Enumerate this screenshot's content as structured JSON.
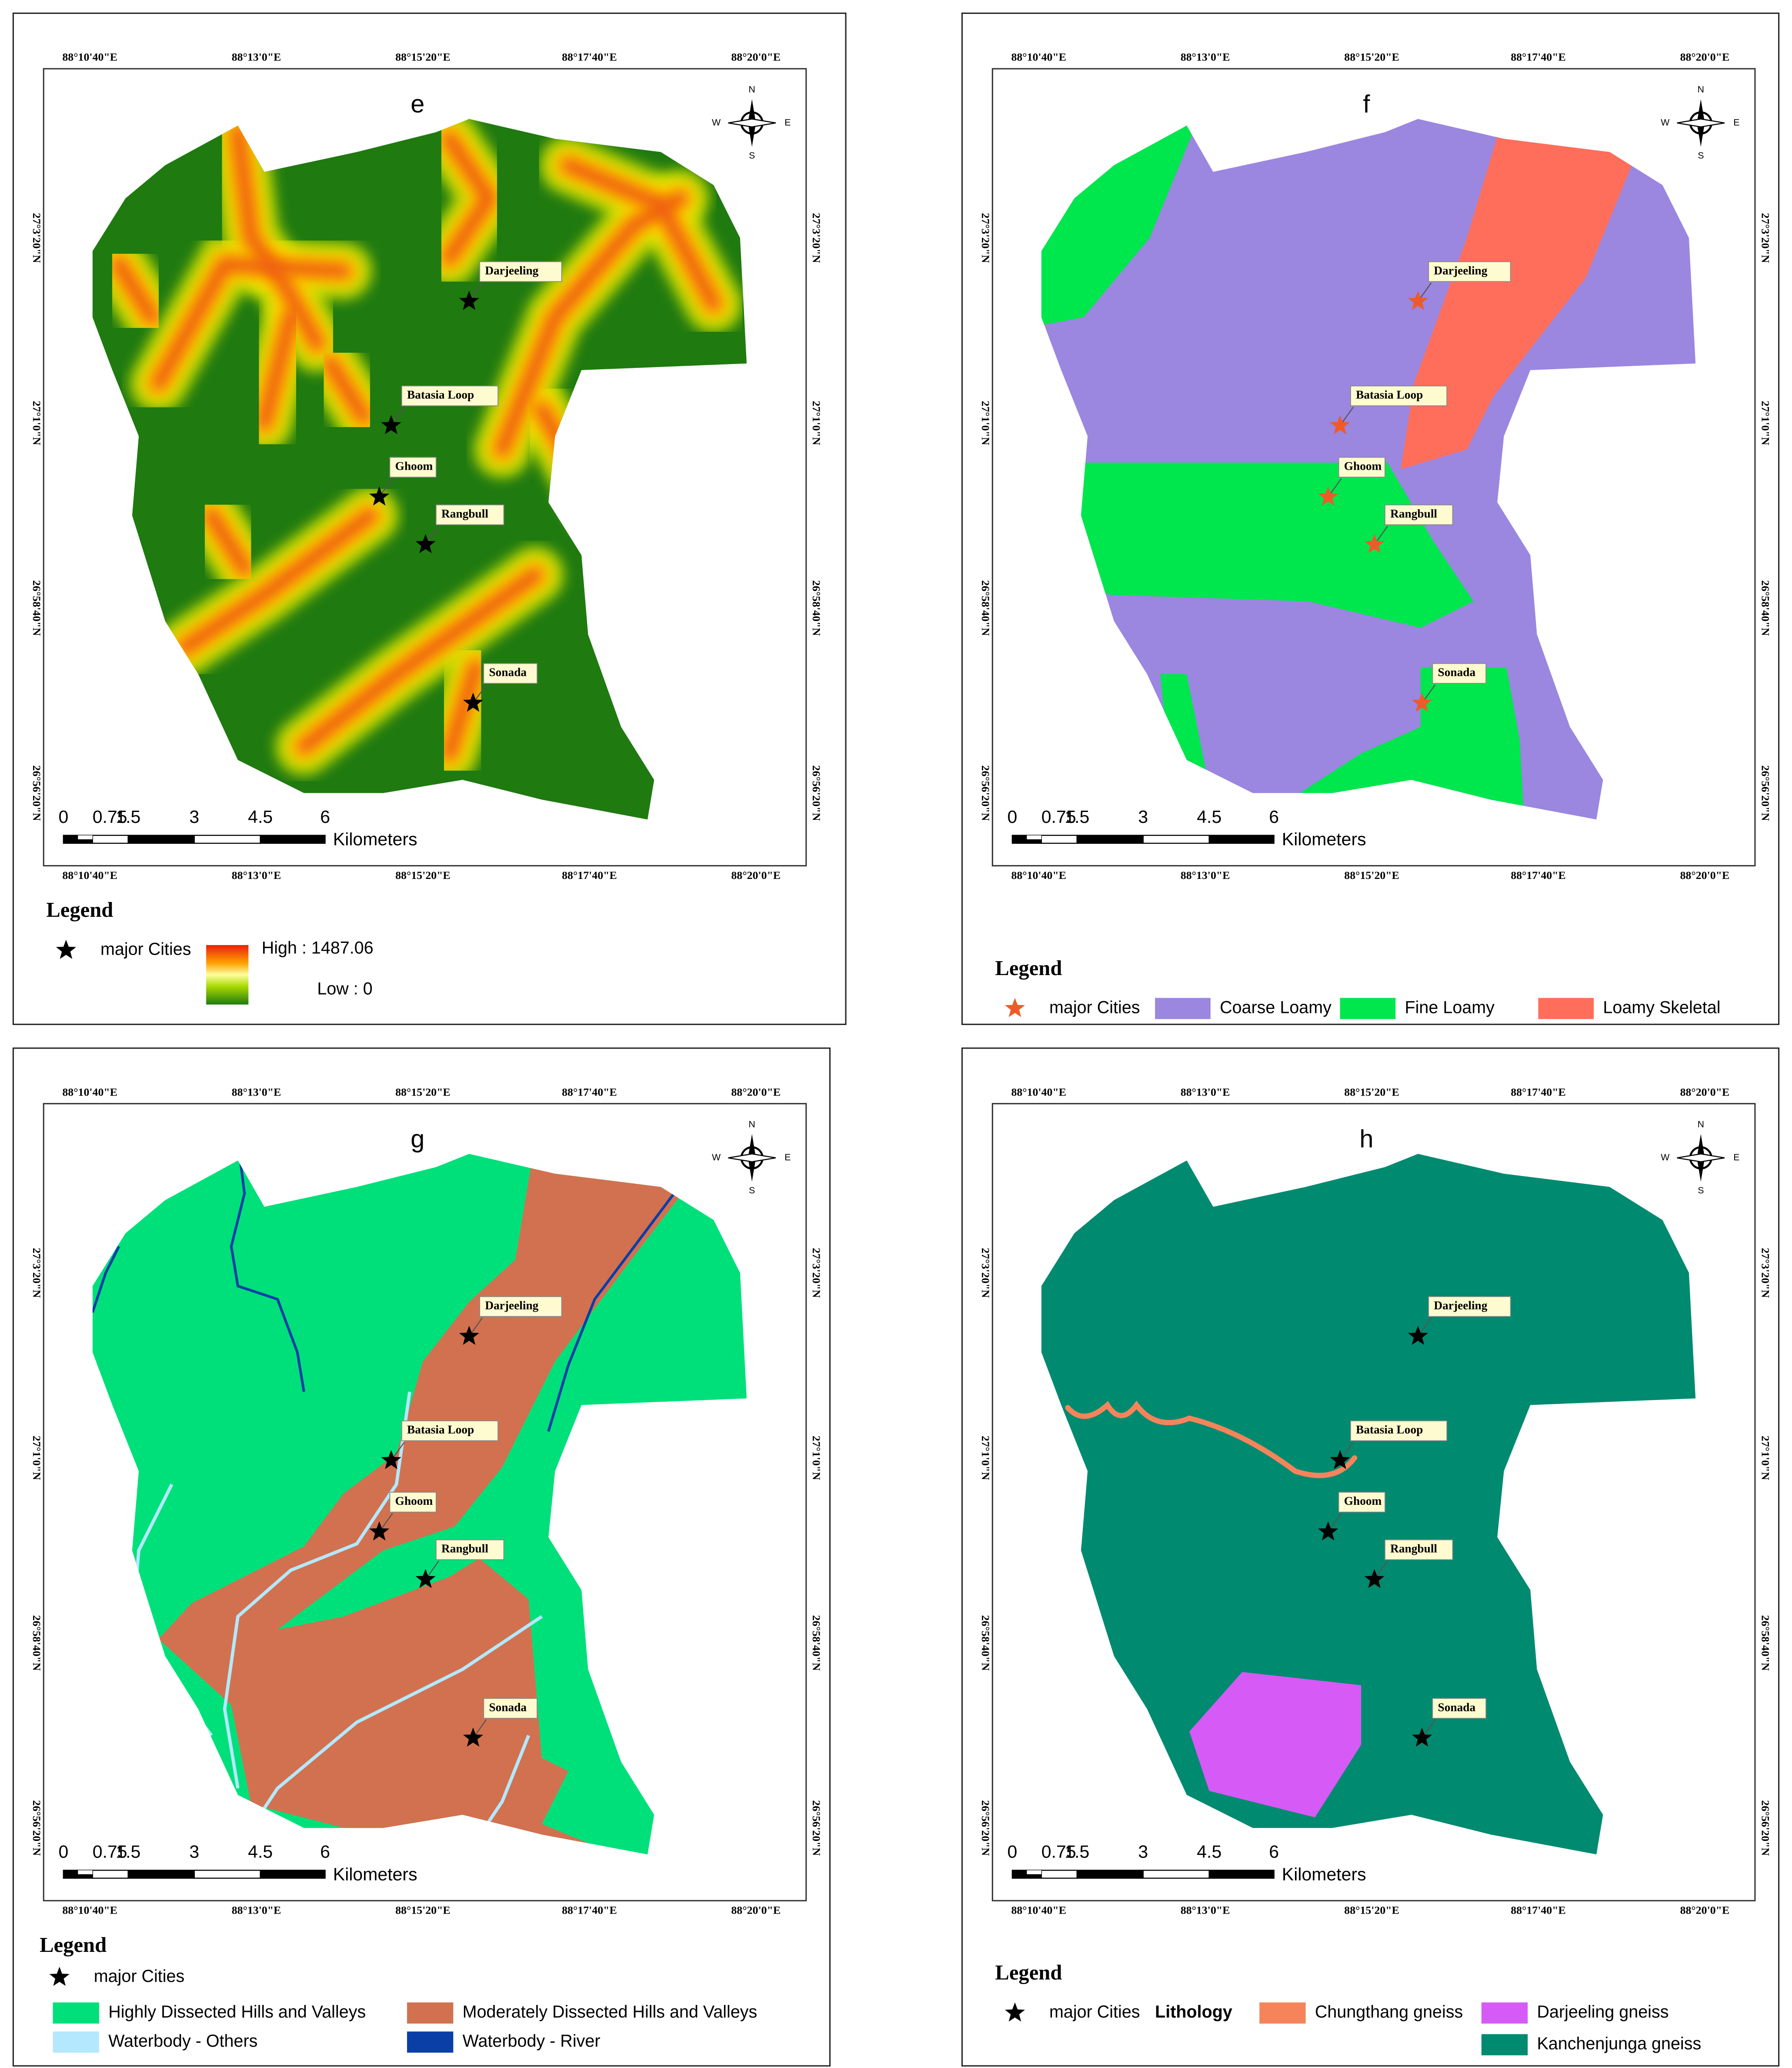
{
  "common": {
    "longitude_labels": [
      "88°10'40\"E",
      "88°13'0\"E",
      "88°15'20\"E",
      "88°17'40\"E",
      "88°20'0\"E"
    ],
    "latitude_labels": [
      "27°3'20\"N",
      "27°1'0\"N",
      "26°58'40\"N",
      "26°56'20\"N"
    ],
    "compass": [
      "N",
      "E",
      "S",
      "W"
    ],
    "cities": [
      "Darjeeling",
      "Batasia Loop",
      "Ghoom",
      "Rangbull",
      "Sonada"
    ],
    "scale_labels": [
      "0",
      "0.75",
      "1.5",
      "3",
      "4.5",
      "6"
    ],
    "scale_unit": "Kilometers",
    "legend_title": "Legend"
  },
  "panels": [
    {
      "label": "e",
      "legend": [
        {
          "name": "major Cities",
          "color": "#000000"
        }
      ],
      "ramp": {
        "high": "High : 1487.06",
        "low": "Low : 0"
      }
    },
    {
      "label": "f",
      "legend": [
        {
          "name": "major Cities",
          "color": "#f05a28"
        },
        {
          "name": "Coarse Loamy",
          "color": "#9b86e0"
        },
        {
          "name": "Fine Loamy",
          "color": "#00e64d"
        },
        {
          "name": "Loamy Skeletal",
          "color": "#ff6e5a"
        }
      ]
    },
    {
      "label": "g",
      "legend": [
        {
          "name": "major Cities",
          "color": "#000000"
        },
        {
          "name": "Highly Dissected Hills and Valleys",
          "color": "#00e07a"
        },
        {
          "name": "Moderately Dissected Hills and Valleys",
          "color": "#d2714f"
        },
        {
          "name": "Waterbody - Others",
          "color": "#b3e8ff"
        },
        {
          "name": "Waterbody - River",
          "color": "#0a3fa8"
        }
      ]
    },
    {
      "label": "h",
      "legend_heading": "Lithology",
      "legend": [
        {
          "name": "major Cities",
          "color": "#000000"
        },
        {
          "name": "Chungthang gneiss",
          "color": "#f5845a"
        },
        {
          "name": "Darjeeling gneiss",
          "color": "#d65af5"
        },
        {
          "name": "Kanchenjunga gneiss",
          "color": "#008a70"
        }
      ]
    }
  ]
}
